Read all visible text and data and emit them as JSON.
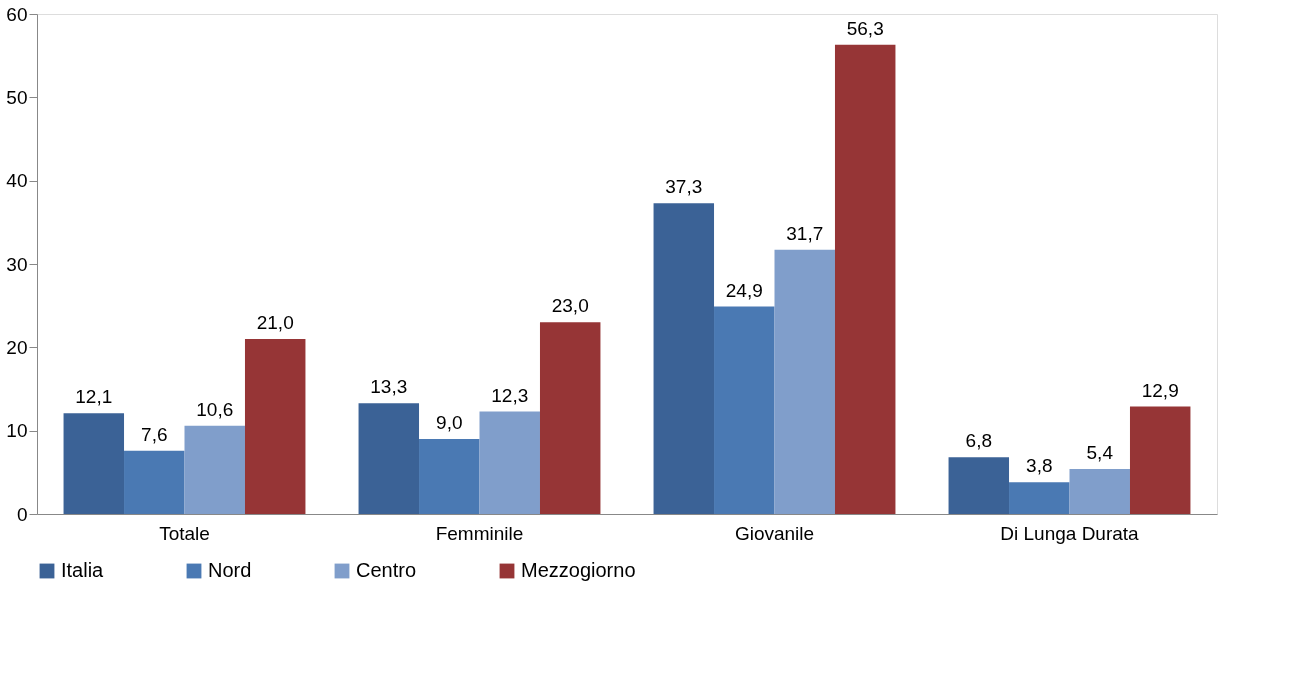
{
  "chart_data": {
    "type": "bar",
    "categories": [
      "Totale",
      "Femminile",
      "Giovanile",
      "Di Lunga Durata"
    ],
    "series": [
      {
        "name": "Italia",
        "color": "#3b6296",
        "values": [
          12.1,
          13.3,
          37.3,
          6.8
        ],
        "value_labels": [
          "12,1",
          "13,3",
          "37,3",
          "6,8"
        ]
      },
      {
        "name": "Nord",
        "color": "#4a79b3",
        "values": [
          7.6,
          9.0,
          24.9,
          3.8
        ],
        "value_labels": [
          "7,6",
          "9,0",
          "24,9",
          "3,8"
        ]
      },
      {
        "name": "Centro",
        "color": "#809ecb",
        "values": [
          10.6,
          12.3,
          31.7,
          5.4
        ],
        "value_labels": [
          "10,6",
          "12,3",
          "31,7",
          "5,4"
        ]
      },
      {
        "name": "Mezzogiorno",
        "color": "#963536",
        "values": [
          21.0,
          23.0,
          56.3,
          12.9
        ],
        "value_labels": [
          "21,0",
          "23,0",
          "56,3",
          "12,9"
        ]
      }
    ],
    "ylim": [
      0,
      60
    ],
    "yticks": [
      0,
      10,
      20,
      30,
      40,
      50,
      60
    ],
    "grid": false,
    "legend": "bottom"
  }
}
